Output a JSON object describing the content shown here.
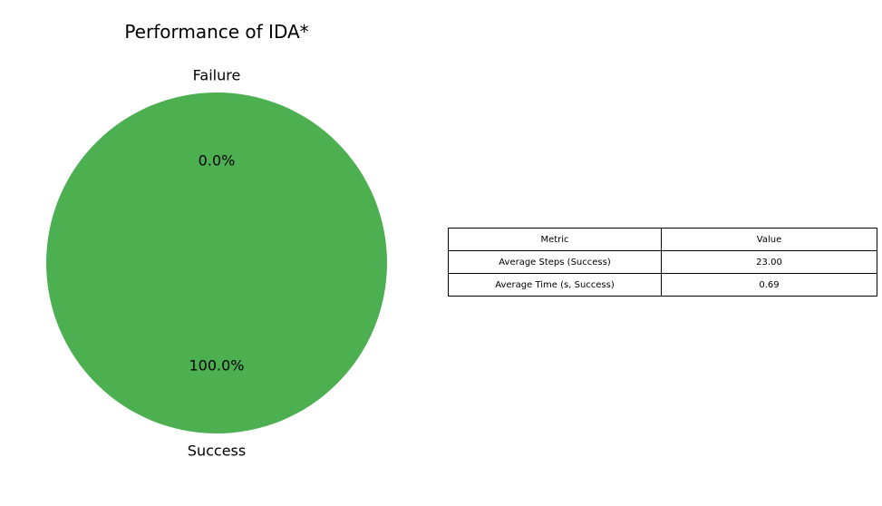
{
  "chart_data": [
    {
      "type": "pie",
      "title": "Performance of IDA*",
      "slices": [
        {
          "label": "Success",
          "value": 100.0,
          "pct_label": "100.0%",
          "color": "#4caf50"
        },
        {
          "label": "Failure",
          "value": 0.0,
          "pct_label": "0.0%",
          "color": "#f44336"
        }
      ]
    },
    {
      "type": "table",
      "columns": [
        "Metric",
        "Value"
      ],
      "rows": [
        [
          "Average Steps (Success)",
          "23.00"
        ],
        [
          "Average Time (s, Success)",
          "0.69"
        ]
      ]
    }
  ]
}
